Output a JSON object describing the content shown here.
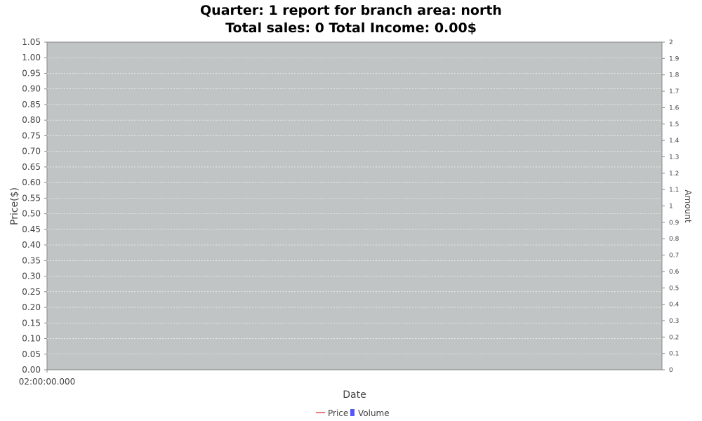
{
  "chart_data": {
    "type": "line",
    "title": "Quarter: 1 report for branch area: north",
    "subtitle": "Total sales: 0 Total Income: 0.00$",
    "xlabel": "Date",
    "ylabel": "Price($)",
    "y2label": "Amount",
    "x_ticks": [
      "02:00:00.000"
    ],
    "ylim": [
      0,
      1.05
    ],
    "y_ticks": [
      "0.00",
      "0.05",
      "0.10",
      "0.15",
      "0.20",
      "0.25",
      "0.30",
      "0.35",
      "0.40",
      "0.45",
      "0.50",
      "0.55",
      "0.60",
      "0.65",
      "0.70",
      "0.75",
      "0.80",
      "0.85",
      "0.90",
      "0.95",
      "1.00",
      "1.05"
    ],
    "y2lim": [
      0,
      2
    ],
    "y2_ticks": [
      "0",
      "0.1",
      "0.2",
      "0.3",
      "0.4",
      "0.5",
      "0.6",
      "0.7",
      "0.8",
      "0.9",
      "1",
      "1.1",
      "1.2",
      "1.3",
      "1.4",
      "1.5",
      "1.6",
      "1.7",
      "1.8",
      "1.9",
      "2"
    ],
    "grid": true,
    "legend_position": "bottom-center",
    "series": [
      {
        "name": "Price",
        "type": "line",
        "color": "#e05050",
        "values": []
      },
      {
        "name": "Volume",
        "type": "bar",
        "color": "#5555ff",
        "values": []
      }
    ],
    "plot_background": "#c0c4c4"
  }
}
